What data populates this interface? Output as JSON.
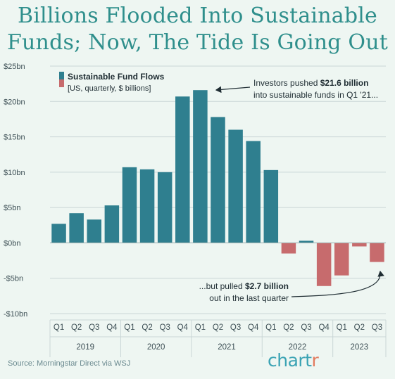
{
  "title_line1": "Billions Flooded Into Sustainable",
  "title_line2": "Funds; Now, The Tide Is Going Out",
  "source": "Source: Morningstar Direct via WSJ",
  "brand": {
    "main": "chart",
    "accent": "r"
  },
  "colors": {
    "positive": "#2f7f8f",
    "negative": "#c76b6d",
    "title": "#2f8f8c",
    "background": "#eef6f2"
  },
  "chart_data": {
    "type": "bar",
    "categories": [
      "Q1",
      "Q2",
      "Q3",
      "Q4",
      "Q1",
      "Q2",
      "Q3",
      "Q4",
      "Q1",
      "Q2",
      "Q3",
      "Q4",
      "Q1",
      "Q2",
      "Q3",
      "Q4",
      "Q1",
      "Q2",
      "Q3"
    ],
    "years": [
      {
        "label": "2019",
        "quarters": 4
      },
      {
        "label": "2020",
        "quarters": 4
      },
      {
        "label": "2021",
        "quarters": 4
      },
      {
        "label": "2022",
        "quarters": 4
      },
      {
        "label": "2023",
        "quarters": 3
      }
    ],
    "values": [
      2.7,
      4.2,
      3.3,
      5.3,
      10.7,
      10.4,
      10.0,
      20.7,
      21.6,
      17.8,
      16.0,
      14.4,
      10.3,
      -1.5,
      0.3,
      -6.1,
      -4.6,
      -0.5,
      -2.7
    ],
    "legend": {
      "title": "Sustainable Fund Flows",
      "subtitle": "[US, quarterly, $ billions]"
    },
    "ylim": [
      -10,
      25
    ],
    "yticks": [
      {
        "value": 25,
        "label": "$25bn"
      },
      {
        "value": 20,
        "label": "$20bn"
      },
      {
        "value": 15,
        "label": "$15bn"
      },
      {
        "value": 10,
        "label": "$10bn"
      },
      {
        "value": 5,
        "label": "$5bn"
      },
      {
        "value": 0,
        "label": "$0bn"
      },
      {
        "value": -5,
        "label": "-$5bn"
      },
      {
        "value": -10,
        "label": "-$10bn"
      }
    ],
    "grid": true,
    "legend_position": "top-left",
    "annotations": [
      {
        "pre": "Investors pushed ",
        "bold": "$21.6 billion",
        "line2": "into sustainable funds in Q1 '21...",
        "target_index": 8
      },
      {
        "pre": "...but pulled ",
        "bold": "$2.7 billion",
        "line2": "out in the last quarter",
        "target_index": 18
      }
    ]
  }
}
